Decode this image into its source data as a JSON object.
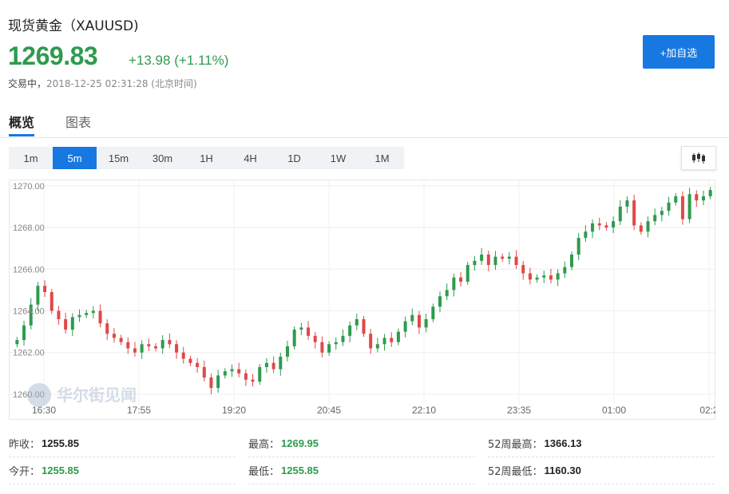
{
  "header": {
    "title": "现货黄金（XAUUSD)",
    "price": "1269.83",
    "change": "+13.98 (+1.11%)",
    "status_label": "交易中，",
    "timestamp": "2018-12-25 02:31:28",
    "timezone": "(北京时间)",
    "add_button": "+加自选"
  },
  "tabs": [
    {
      "label": "概览",
      "active": true
    },
    {
      "label": "图表",
      "active": false
    }
  ],
  "periods": [
    {
      "label": "1m",
      "active": false
    },
    {
      "label": "5m",
      "active": true
    },
    {
      "label": "15m",
      "active": false
    },
    {
      "label": "30m",
      "active": false
    },
    {
      "label": "1H",
      "active": false
    },
    {
      "label": "4H",
      "active": false
    },
    {
      "label": "1D",
      "active": false
    },
    {
      "label": "1W",
      "active": false
    },
    {
      "label": "1M",
      "active": false
    }
  ],
  "chart_type_icon": "candlestick-icon",
  "watermark": "华尔街见闻",
  "colors": {
    "up": "#2e9b4e",
    "down": "#e04848",
    "accent": "#1678e0"
  },
  "chart_data": {
    "type": "candlestick",
    "y_ticks": [
      "1270.00",
      "1268.00",
      "1266.00",
      "1264.00",
      "1262.00",
      "1260.00"
    ],
    "ylim": [
      1259.5,
      1270.3
    ],
    "x_ticks": [
      "16:30",
      "17:55",
      "19:20",
      "20:45",
      "22:10",
      "23:35",
      "01:00",
      "02:2"
    ],
    "closes": [
      1262.6,
      1263.3,
      1264.3,
      1265.2,
      1264.9,
      1264.0,
      1263.6,
      1263.1,
      1263.7,
      1263.8,
      1263.9,
      1264.0,
      1263.4,
      1262.9,
      1262.7,
      1262.5,
      1262.2,
      1262.0,
      1262.4,
      1262.3,
      1262.2,
      1262.6,
      1262.4,
      1262.0,
      1261.7,
      1261.5,
      1261.3,
      1260.8,
      1260.3,
      1260.9,
      1261.1,
      1261.2,
      1261.0,
      1260.7,
      1260.6,
      1261.3,
      1261.5,
      1261.2,
      1261.8,
      1262.3,
      1263.1,
      1263.2,
      1262.8,
      1262.5,
      1262.0,
      1262.4,
      1262.5,
      1262.8,
      1263.3,
      1263.6,
      1262.9,
      1262.2,
      1262.4,
      1262.7,
      1262.5,
      1263.0,
      1263.5,
      1263.8,
      1263.2,
      1263.6,
      1264.2,
      1264.7,
      1265.0,
      1265.6,
      1265.4,
      1266.2,
      1266.4,
      1266.7,
      1266.2,
      1266.6,
      1266.5,
      1266.6,
      1266.2,
      1265.8,
      1265.5,
      1265.6,
      1265.7,
      1265.5,
      1265.8,
      1266.1,
      1266.7,
      1267.5,
      1267.8,
      1268.2,
      1268.1,
      1268.0,
      1268.3,
      1269.0,
      1269.3,
      1268.1,
      1267.8,
      1268.3,
      1268.6,
      1268.8,
      1269.2,
      1269.5,
      1268.4,
      1269.6,
      1269.3,
      1269.5,
      1269.8
    ]
  },
  "stats": [
    {
      "label": "昨收：",
      "value": "1255.85",
      "tone": "dark"
    },
    {
      "label": "最高：",
      "value": "1269.95",
      "tone": "up"
    },
    {
      "label": "52周最高：",
      "value": "1366.13",
      "tone": "dark"
    },
    {
      "label": "今开：",
      "value": "1255.85",
      "tone": "up"
    },
    {
      "label": "最低：",
      "value": "1255.85",
      "tone": "up"
    },
    {
      "label": "52周最低：",
      "value": "1160.30",
      "tone": "dark"
    }
  ]
}
